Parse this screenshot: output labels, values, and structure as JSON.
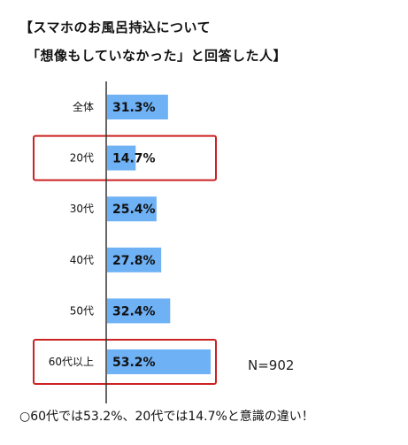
{
  "header": {
    "title_line1": "【スマホのお風呂持込について",
    "title_line2": "「想像もしていなかった」と回答した人】"
  },
  "chart_data": {
    "type": "bar",
    "orientation": "horizontal",
    "categories": [
      "全体",
      "20代",
      "30代",
      "40代",
      "50代",
      "60代以上"
    ],
    "values": [
      31.3,
      14.7,
      25.4,
      27.8,
      32.4,
      53.2
    ],
    "value_labels": [
      "31.3%",
      "14.7%",
      "25.4%",
      "27.8%",
      "32.4%",
      "53.2%"
    ],
    "highlighted": [
      "20代",
      "60代以上"
    ],
    "unit": "%",
    "xlim": [
      0,
      100
    ],
    "grid": false,
    "bar_color": "#6fb1f5",
    "highlight_color": "#cc2222",
    "annotation": "N=902"
  },
  "footer": {
    "caption": "○60代では53.2%、20代では14.7%と意識の違い！"
  }
}
